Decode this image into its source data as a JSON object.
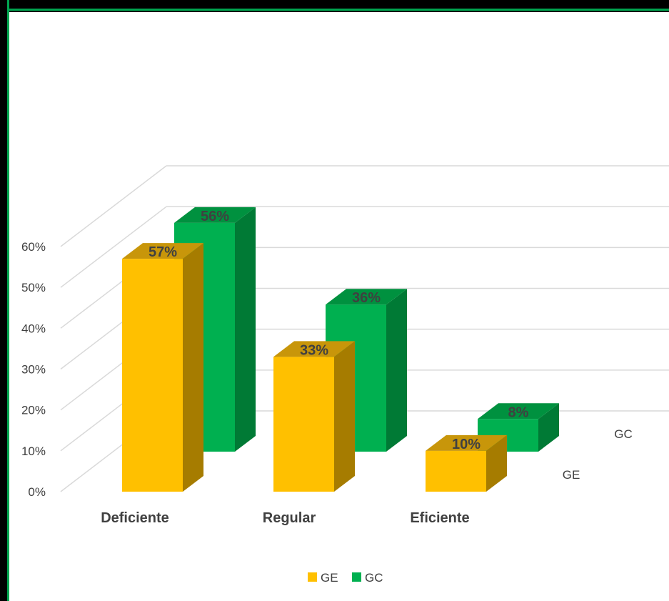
{
  "chart_data": {
    "type": "bar",
    "style": "3d-clustered-column",
    "categories": [
      "Deficiente",
      "Regular",
      "Eficiente"
    ],
    "series": [
      {
        "name": "GE",
        "values": [
          57,
          33,
          10
        ],
        "labels": [
          "57%",
          "33%",
          "10%"
        ],
        "color": "#FFC000",
        "side_color": "#A67C00",
        "top_color": "#C8960A"
      },
      {
        "name": "GC",
        "values": [
          56,
          36,
          8
        ],
        "labels": [
          "56%",
          "36%",
          "8%"
        ],
        "color": "#00B050",
        "side_color": "#007A35",
        "top_color": "#00913F"
      }
    ],
    "yticks": [
      "0%",
      "10%",
      "20%",
      "30%",
      "40%",
      "50%",
      "60%"
    ],
    "ylim": [
      0,
      60
    ],
    "depth_labels": [
      "GE",
      "GC"
    ],
    "grid": true,
    "legend": {
      "position": "bottom",
      "entries": [
        "GE",
        "GC"
      ]
    }
  }
}
